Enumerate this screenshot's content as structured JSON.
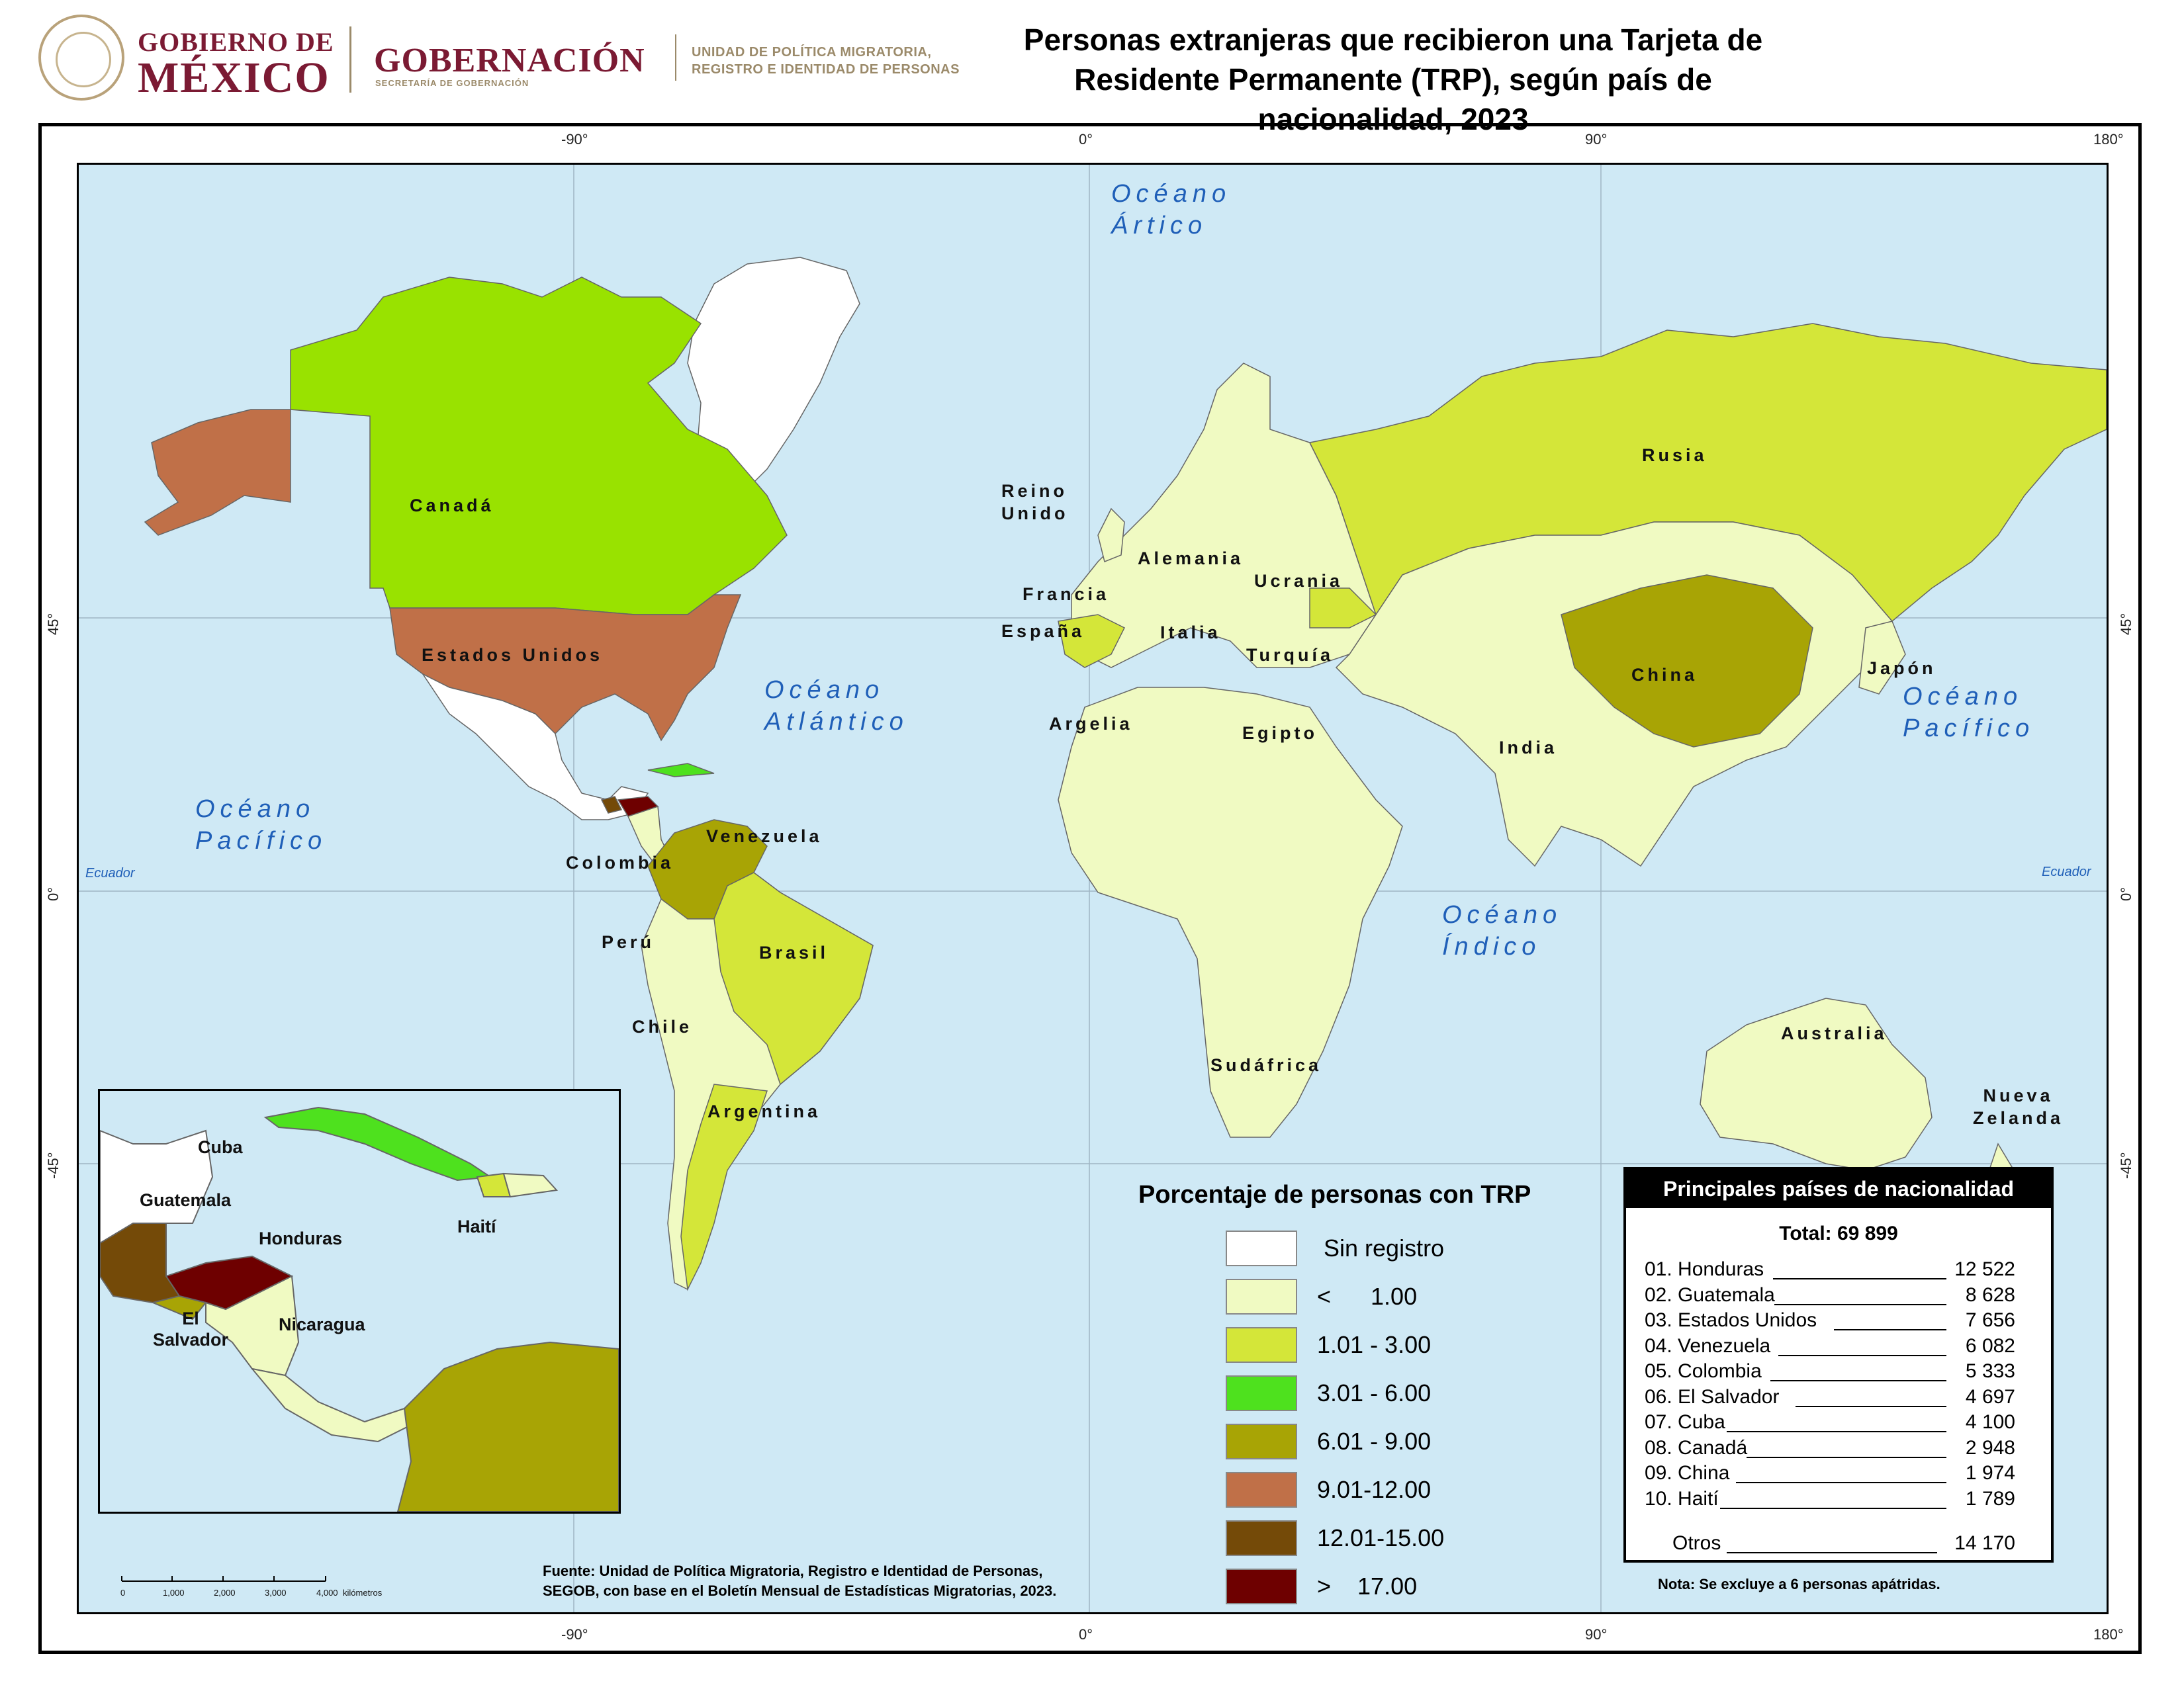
{
  "header": {
    "gobierno_line1": "GOBIERNO DE",
    "gobierno_line2": "MÉXICO",
    "gobernacion": "GOBERNACIÓN",
    "gobernacion_sub": "SECRETARÍA DE GOBERNACIÓN",
    "unidad_line1": "UNIDAD DE POLÍTICA MIGRATORIA,",
    "unidad_line2": "REGISTRO E IDENTIDAD DE PERSONAS",
    "title_line1": "Personas extranjeras que recibieron una Tarjeta de",
    "title_line2": "Residente Permanente (TRP), según país de nacionalidad, 2023"
  },
  "grid": {
    "top_ticks": [
      "-90°",
      "0°",
      "90°",
      "180°"
    ],
    "bottom_ticks": [
      "-90°",
      "0°",
      "90°",
      "180°"
    ],
    "left_ticks": [
      "45°",
      "0°",
      "-45°"
    ],
    "right_ticks": [
      "45°",
      "0°",
      "-45°"
    ],
    "equator_left": "Ecuador",
    "equator_right": "Ecuador"
  },
  "oceans": {
    "artico_1": "Océano",
    "artico_2": "Ártico",
    "atlantico_1": "Océano",
    "atlantico_2": "Atlántico",
    "pacifico_w_1": "Océano",
    "pacifico_w_2": "Pacífico",
    "pacifico_e_1": "Océano",
    "pacifico_e_2": "Pacífico",
    "indico_1": "Océano",
    "indico_2": "Índico"
  },
  "countries": {
    "canada": "Canadá",
    "usa": "Estados Unidos",
    "rusia": "Rusia",
    "reino1": "Reino",
    "reino2": "Unido",
    "francia": "Francia",
    "espana": "España",
    "alemania": "Alemania",
    "italia": "Italia",
    "ucrania": "Ucrania",
    "turquia": "Turquía",
    "china": "China",
    "japon": "Japón",
    "india": "India",
    "egipto": "Egipto",
    "argelia": "Argelia",
    "venezuela": "Venezuela",
    "colombia": "Colombia",
    "brasil": "Brasil",
    "peru": "Perú",
    "chile": "Chile",
    "argentina": "Argentina",
    "sudafrica": "Sudáfrica",
    "australia": "Australia",
    "nz1": "Nueva",
    "nz2": "Zelanda"
  },
  "inset": {
    "cuba": "Cuba",
    "guatemala": "Guatemala",
    "honduras": "Honduras",
    "haiti": "Haití",
    "salvador1": "El",
    "salvador2": "Salvador",
    "nicaragua": "Nicaragua"
  },
  "legend": {
    "title": "Porcentaje de personas con TRP",
    "items": [
      {
        "label": "Sin registro",
        "color": "#ffffff"
      },
      {
        "label": "<      1.00",
        "color": "#f0fac2"
      },
      {
        "label": "1.01 - 3.00",
        "color": "#d4e639"
      },
      {
        "label": "3.01 - 6.00",
        "color": "#4ee11e"
      },
      {
        "label": "6.01 - 9.00",
        "color": "#a8a405"
      },
      {
        "label": "9.01-12.00",
        "color": "#c07048"
      },
      {
        "label": "12.01-15.00",
        "color": "#744a08"
      },
      {
        "label": ">    17.00",
        "color": "#6e0000"
      }
    ]
  },
  "table": {
    "header": "Principales países de nacionalidad",
    "total": "Total: 69 899",
    "rows": [
      {
        "name": "01. Honduras",
        "value": "12 522"
      },
      {
        "name": "02. Guatemala",
        "value": "8 628"
      },
      {
        "name": "03. Estados Unidos",
        "value": "7 656"
      },
      {
        "name": "04. Venezuela",
        "value": "6 082"
      },
      {
        "name": "05. Colombia",
        "value": "5 333"
      },
      {
        "name": "06. El Salvador",
        "value": "4 697"
      },
      {
        "name": "07. Cuba",
        "value": "4 100"
      },
      {
        "name": "08. Canadá",
        "value": "2 948"
      },
      {
        "name": "09. China",
        "value": "1 974"
      },
      {
        "name": "10. Haití",
        "value": "1 789"
      }
    ],
    "otros_name": "Otros",
    "otros_value": "14 170"
  },
  "note": "Nota: Se excluye a 6 personas apátridas.",
  "source_line1": "Fuente: Unidad de Política Migratoria, Registro e Identidad de Personas,",
  "source_line2": "SEGOB, con base en el Boletín Mensual de Estadísticas Migratorias, 2023.",
  "scale": {
    "ticks": [
      "0",
      "1,000",
      "2,000",
      "3,000",
      "4,000"
    ],
    "unit": "kilómetros"
  },
  "colors": {
    "ocean": "#cfe9f5",
    "low": "#f0fac2",
    "c1_3": "#d4e639",
    "c3_6": "#4ee11e",
    "c9_12": "#c07048",
    "c6_9": "#a8a405",
    "c12_15": "#744a08",
    "c17": "#6e0000",
    "label_blue": "#1f5fb8",
    "brand": "#7b1a33"
  }
}
